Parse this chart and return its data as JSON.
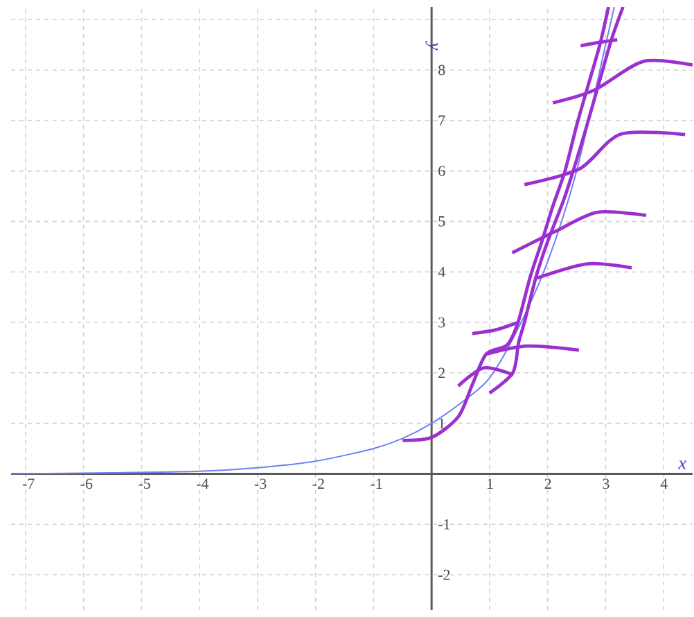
{
  "chart_data": {
    "type": "line",
    "xlabel": "x",
    "ylabel": "y",
    "xlim": [
      -7.25,
      4.5
    ],
    "ylim": [
      -2.7,
      9.25
    ],
    "xticks": [
      -7,
      -6,
      -5,
      -4,
      -3,
      -2,
      -1,
      1,
      2,
      3,
      4
    ],
    "yticks": [
      -2,
      -1,
      1,
      2,
      3,
      4,
      5,
      6,
      7,
      8,
      {
        "value": 9,
        "label": null
      }
    ],
    "grid": true,
    "marker": "none",
    "line_style": "solid",
    "series": [
      {
        "color": "#6f7ff5",
        "x": [
          -7.25,
          -5.5,
          -4,
          -3,
          -2,
          -1,
          -0.5,
          0,
          0.5,
          1,
          1.5,
          2,
          2.5,
          3,
          3.15
        ],
        "values": [
          0,
          0.02,
          0.05,
          0.12,
          0.25,
          0.5,
          0.7,
          1,
          1.4,
          1.9,
          2.9,
          4.2,
          6,
          8.5,
          9.25
        ]
      },
      {
        "color": "#9b30d0",
        "x": [
          -0.5,
          0,
          0.46,
          0.7,
          0.94,
          1.3,
          1.49,
          1.7,
          1.9,
          2.09,
          2.3,
          2.5,
          2.7,
          2.9,
          3.05
        ],
        "values": [
          0.66,
          0.72,
          1.13,
          1.76,
          2.37,
          2.55,
          3.0,
          3.9,
          4.6,
          5.3,
          6.0,
          6.9,
          7.7,
          8.5,
          9.25
        ]
      },
      {
        "color": "#9b30d0",
        "x": [
          1.0,
          1.4,
          1.5,
          1.6,
          1.8,
          2.0,
          2.3,
          2.6,
          2.9,
          3.1,
          3.3
        ],
        "values": [
          1.6,
          2.0,
          2.6,
          3.0,
          3.9,
          4.6,
          5.5,
          6.6,
          7.8,
          8.6,
          9.25
        ]
      },
      {
        "color": "#9b30d0",
        "x": [
          0.46,
          0.9,
          1.41
        ],
        "values": [
          1.74,
          2.1,
          1.96
        ]
      },
      {
        "color": "#9b30d0",
        "x": [
          0.94,
          1.65,
          2.54
        ],
        "values": [
          2.37,
          2.53,
          2.45
        ]
      },
      {
        "color": "#9b30d0",
        "x": [
          0.7,
          1.1,
          1.49
        ],
        "values": [
          2.78,
          2.85,
          3.0
        ]
      },
      {
        "color": "#9b30d0",
        "x": [
          1.82,
          2.69,
          3.45
        ],
        "values": [
          3.88,
          4.16,
          4.08
        ]
      },
      {
        "color": "#9b30d0",
        "x": [
          1.39,
          2.13,
          2.85,
          3.7
        ],
        "values": [
          4.38,
          4.8,
          5.18,
          5.12
        ]
      },
      {
        "color": "#9b30d0",
        "x": [
          1.6,
          2.55,
          3.26,
          4.37
        ],
        "values": [
          5.73,
          6.04,
          6.73,
          6.72
        ]
      },
      {
        "color": "#9b30d0",
        "x": [
          2.09,
          2.8,
          3.65,
          4.5
        ],
        "values": [
          7.35,
          7.6,
          8.17,
          8.1
        ]
      },
      {
        "color": "#9b30d0",
        "x": [
          2.57,
          2.9,
          3.2
        ],
        "values": [
          8.48,
          8.55,
          8.6
        ]
      }
    ]
  }
}
